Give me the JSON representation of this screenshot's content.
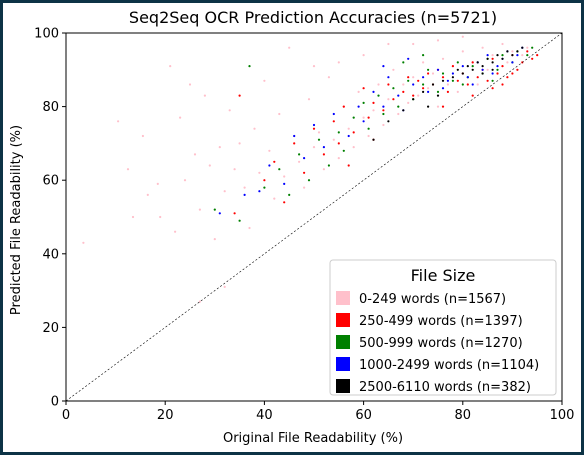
{
  "chart_data": {
    "type": "scatter",
    "title": "Seq2Seq OCR Prediction Accuracies (n=5721)",
    "xlabel": "Original File Readability (%)",
    "ylabel": "Predicted File Readability (%)",
    "xlim": [
      0,
      100
    ],
    "ylim": [
      0,
      100
    ],
    "xticks": [
      0,
      20,
      40,
      60,
      80,
      100
    ],
    "yticks": [
      0,
      20,
      40,
      60,
      80,
      100
    ],
    "grid": false,
    "reference_line": {
      "style": "dashed",
      "from": [
        0,
        0
      ],
      "to": [
        100,
        100
      ],
      "color": "#000000"
    },
    "legend": {
      "title": "File Size",
      "placement": "lower-right",
      "entries": [
        {
          "label": "0-249 words (n=1567)",
          "color": "#ffc0cb"
        },
        {
          "label": "250-499 words (n=1397)",
          "color": "#ff0000"
        },
        {
          "label": "500-999 words (n=1270)",
          "color": "#008000"
        },
        {
          "label": "1000-2499 words (n=1104)",
          "color": "#0000ff"
        },
        {
          "label": "2500-6110 words (n=382)",
          "color": "#000000"
        }
      ]
    },
    "series": [
      {
        "name": "0-249 words (n=1567)",
        "color": "#ffc0cb",
        "points": [
          [
            3.5,
            43
          ],
          [
            10.5,
            76
          ],
          [
            12.5,
            63
          ],
          [
            13.5,
            50
          ],
          [
            15.5,
            72
          ],
          [
            16.5,
            56
          ],
          [
            18.5,
            59
          ],
          [
            19,
            50
          ],
          [
            21,
            91
          ],
          [
            23,
            77
          ],
          [
            24,
            60
          ],
          [
            25,
            86
          ],
          [
            26,
            67
          ],
          [
            27,
            52
          ],
          [
            28,
            83
          ],
          [
            29,
            64
          ],
          [
            30,
            44
          ],
          [
            31,
            69
          ],
          [
            32,
            57
          ],
          [
            33,
            79
          ],
          [
            34,
            63
          ],
          [
            35,
            70
          ],
          [
            36,
            58
          ],
          [
            37,
            47
          ],
          [
            38,
            74
          ],
          [
            39,
            62
          ],
          [
            40,
            87
          ],
          [
            41,
            68
          ],
          [
            42,
            55
          ],
          [
            43,
            78
          ],
          [
            44,
            61
          ],
          [
            45,
            96
          ],
          [
            46,
            72
          ],
          [
            47,
            65
          ],
          [
            48,
            58
          ],
          [
            49,
            82
          ],
          [
            50,
            69
          ],
          [
            51,
            73
          ],
          [
            52,
            63
          ],
          [
            53,
            88
          ],
          [
            54,
            71
          ],
          [
            55,
            66
          ],
          [
            56,
            80
          ],
          [
            57,
            74
          ],
          [
            58,
            69
          ],
          [
            59,
            84
          ],
          [
            60,
            77
          ],
          [
            61,
            72
          ],
          [
            62,
            79
          ],
          [
            63,
            86
          ],
          [
            64,
            75
          ],
          [
            65,
            82
          ],
          [
            66,
            90
          ],
          [
            67,
            78
          ],
          [
            68,
            86
          ],
          [
            69,
            81
          ],
          [
            70,
            88
          ],
          [
            71,
            83
          ],
          [
            72,
            92
          ],
          [
            73,
            85
          ],
          [
            74,
            89
          ],
          [
            75,
            80
          ],
          [
            76,
            93
          ],
          [
            77,
            86
          ],
          [
            78,
            91
          ],
          [
            79,
            84
          ],
          [
            80,
            95
          ],
          [
            81,
            88
          ],
          [
            82,
            92
          ],
          [
            83,
            86
          ],
          [
            84,
            96
          ],
          [
            85,
            90
          ],
          [
            86,
            94
          ],
          [
            87,
            89
          ],
          [
            88,
            97
          ],
          [
            89,
            92
          ],
          [
            90,
            95
          ],
          [
            91,
            90
          ],
          [
            92,
            94
          ],
          [
            93,
            96
          ],
          [
            70,
            97
          ],
          [
            75,
            98
          ],
          [
            80,
            99
          ],
          [
            60,
            94
          ],
          [
            55,
            92
          ],
          [
            65,
            97
          ],
          [
            50,
            91
          ],
          [
            22,
            46
          ],
          [
            27,
            27
          ],
          [
            32,
            31
          ]
        ]
      },
      {
        "name": "250-499 words (n=1397)",
        "color": "#ff0000",
        "points": [
          [
            34,
            51
          ],
          [
            35,
            83
          ],
          [
            40,
            60
          ],
          [
            42,
            65
          ],
          [
            44,
            54
          ],
          [
            46,
            70
          ],
          [
            48,
            62
          ],
          [
            50,
            74
          ],
          [
            52,
            67
          ],
          [
            54,
            76
          ],
          [
            55,
            70
          ],
          [
            56,
            80
          ],
          [
            58,
            73
          ],
          [
            60,
            85
          ],
          [
            61,
            77
          ],
          [
            62,
            81
          ],
          [
            64,
            79
          ],
          [
            65,
            86
          ],
          [
            66,
            82
          ],
          [
            68,
            84
          ],
          [
            69,
            88
          ],
          [
            70,
            83
          ],
          [
            71,
            87
          ],
          [
            72,
            85
          ],
          [
            73,
            89
          ],
          [
            74,
            86
          ],
          [
            75,
            90
          ],
          [
            76,
            88
          ],
          [
            77,
            84
          ],
          [
            78,
            91
          ],
          [
            79,
            87
          ],
          [
            80,
            89
          ],
          [
            81,
            86
          ],
          [
            82,
            92
          ],
          [
            83,
            88
          ],
          [
            84,
            90
          ],
          [
            85,
            87
          ],
          [
            86,
            93
          ],
          [
            87,
            89
          ],
          [
            88,
            91
          ],
          [
            89,
            88
          ],
          [
            90,
            94
          ],
          [
            91,
            90
          ],
          [
            92,
            92
          ],
          [
            93,
            95
          ],
          [
            94,
            93
          ],
          [
            95,
            94
          ],
          [
            86,
            85
          ],
          [
            88,
            86
          ],
          [
            90,
            89
          ],
          [
            76,
            80
          ],
          [
            82,
            83
          ],
          [
            62,
            71
          ],
          [
            57,
            64
          ]
        ]
      },
      {
        "name": "500-999 words (n=1270)",
        "color": "#008000",
        "points": [
          [
            30,
            52
          ],
          [
            35,
            49
          ],
          [
            37,
            91
          ],
          [
            40,
            58
          ],
          [
            43,
            63
          ],
          [
            45,
            56
          ],
          [
            47,
            67
          ],
          [
            49,
            60
          ],
          [
            51,
            71
          ],
          [
            53,
            64
          ],
          [
            55,
            73
          ],
          [
            56,
            68
          ],
          [
            58,
            77
          ],
          [
            60,
            81
          ],
          [
            61,
            74
          ],
          [
            63,
            83
          ],
          [
            64,
            78
          ],
          [
            66,
            85
          ],
          [
            67,
            80
          ],
          [
            69,
            87
          ],
          [
            70,
            82
          ],
          [
            72,
            86
          ],
          [
            73,
            90
          ],
          [
            75,
            84
          ],
          [
            76,
            89
          ],
          [
            78,
            87
          ],
          [
            79,
            92
          ],
          [
            81,
            88
          ],
          [
            82,
            91
          ],
          [
            84,
            89
          ],
          [
            85,
            93
          ],
          [
            87,
            90
          ],
          [
            88,
            94
          ],
          [
            90,
            92
          ],
          [
            91,
            95
          ],
          [
            93,
            94
          ],
          [
            94,
            96
          ],
          [
            72,
            94
          ],
          [
            68,
            92
          ],
          [
            80,
            86
          ],
          [
            86,
            87
          ]
        ]
      },
      {
        "name": "1000-2499 words (n=1104)",
        "color": "#0000ff",
        "points": [
          [
            31,
            51
          ],
          [
            36,
            56
          ],
          [
            39,
            57
          ],
          [
            41,
            64
          ],
          [
            44,
            59
          ],
          [
            46,
            72
          ],
          [
            48,
            66
          ],
          [
            50,
            75
          ],
          [
            52,
            69
          ],
          [
            54,
            78
          ],
          [
            57,
            72
          ],
          [
            59,
            80
          ],
          [
            60,
            76
          ],
          [
            62,
            84
          ],
          [
            64,
            80
          ],
          [
            65,
            88
          ],
          [
            67,
            83
          ],
          [
            68,
            79
          ],
          [
            70,
            86
          ],
          [
            72,
            88
          ],
          [
            73,
            84
          ],
          [
            75,
            90
          ],
          [
            77,
            87
          ],
          [
            78,
            89
          ],
          [
            80,
            91
          ],
          [
            81,
            88
          ],
          [
            83,
            92
          ],
          [
            84,
            90
          ],
          [
            85,
            94
          ],
          [
            87,
            91
          ],
          [
            88,
            93
          ],
          [
            89,
            95
          ],
          [
            90,
            92
          ],
          [
            91,
            94
          ],
          [
            92,
            96
          ],
          [
            86,
            89
          ],
          [
            82,
            86
          ],
          [
            76,
            85
          ],
          [
            64,
            91
          ],
          [
            69,
            93
          ]
        ]
      },
      {
        "name": "2500-6110 words (n=382)",
        "color": "#000000",
        "points": [
          [
            62,
            71
          ],
          [
            65,
            76
          ],
          [
            68,
            79
          ],
          [
            70,
            82
          ],
          [
            72,
            84
          ],
          [
            74,
            86
          ],
          [
            76,
            87
          ],
          [
            78,
            88
          ],
          [
            79,
            90
          ],
          [
            80,
            89
          ],
          [
            81,
            91
          ],
          [
            82,
            90
          ],
          [
            83,
            92
          ],
          [
            84,
            91
          ],
          [
            85,
            93
          ],
          [
            86,
            92
          ],
          [
            87,
            94
          ],
          [
            88,
            93
          ],
          [
            89,
            95
          ],
          [
            90,
            94
          ],
          [
            91,
            95
          ],
          [
            92,
            96
          ],
          [
            75,
            83
          ],
          [
            73,
            80
          ],
          [
            84,
            89
          ],
          [
            86,
            90
          ]
        ]
      }
    ]
  }
}
